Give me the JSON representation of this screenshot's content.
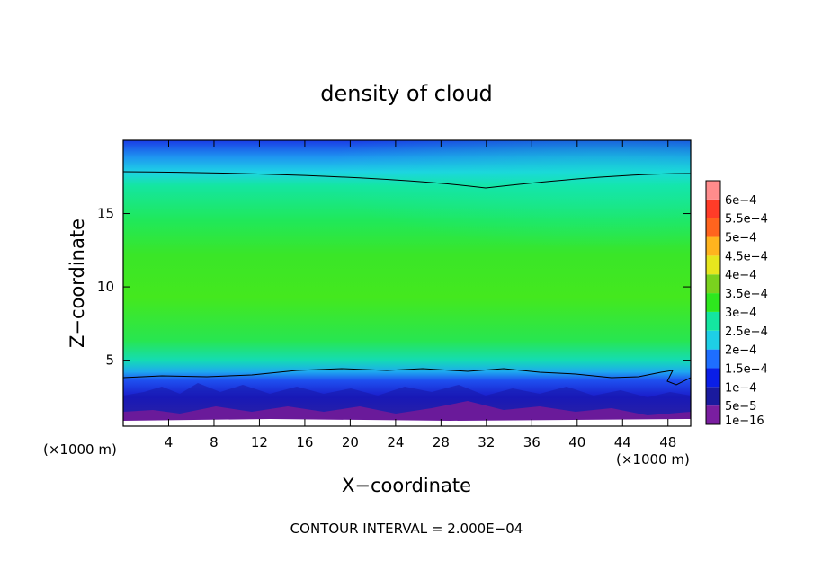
{
  "chart_data": {
    "type": "heatmap",
    "title": "density of cloud",
    "xlabel": "X−coordinate",
    "ylabel": "Z−coordinate",
    "x_unit_left": "(×1000 m)",
    "x_unit_right": "(×1000 m)",
    "footer": "CONTOUR INTERVAL = 2.000E−04",
    "xlim": [
      0,
      50
    ],
    "ylim": [
      0.5,
      20
    ],
    "x_ticks": [
      4,
      8,
      12,
      16,
      20,
      24,
      28,
      32,
      36,
      40,
      44,
      48
    ],
    "y_ticks": [
      5,
      10,
      15
    ],
    "colorbar": {
      "labels": [
        "1e−16",
        "5e−5",
        "1e−4",
        "1.5e−4",
        "2e−4",
        "2.5e−4",
        "3e−4",
        "3.5e−4",
        "4e−4",
        "4.5e−4",
        "5e−4",
        "5.5e−4",
        "6e−4"
      ],
      "colors": [
        "#7a1ea0",
        "#1a1a9e",
        "#0a1ee6",
        "#1e6eff",
        "#1ecfe6",
        "#14e6a0",
        "#2ee81e",
        "#7ad21e",
        "#e6e61e",
        "#ffb41e",
        "#ff641e",
        "#ff3c28",
        "#ff8c8c"
      ]
    },
    "profile": {
      "z": [
        0.8,
        1.5,
        2.2,
        3.0,
        3.6,
        4.5,
        6.0,
        8.0,
        10.0,
        13.0,
        16.0,
        17.5,
        18.5,
        19.3,
        20.0
      ],
      "density": [
        1e-05,
        6e-05,
        0.0001,
        0.00013,
        0.00018,
        0.00023,
        0.00029,
        0.00031,
        0.0003,
        0.00028,
        0.00026,
        0.00021,
        0.00016,
        0.00011,
        7e-05
      ]
    }
  }
}
